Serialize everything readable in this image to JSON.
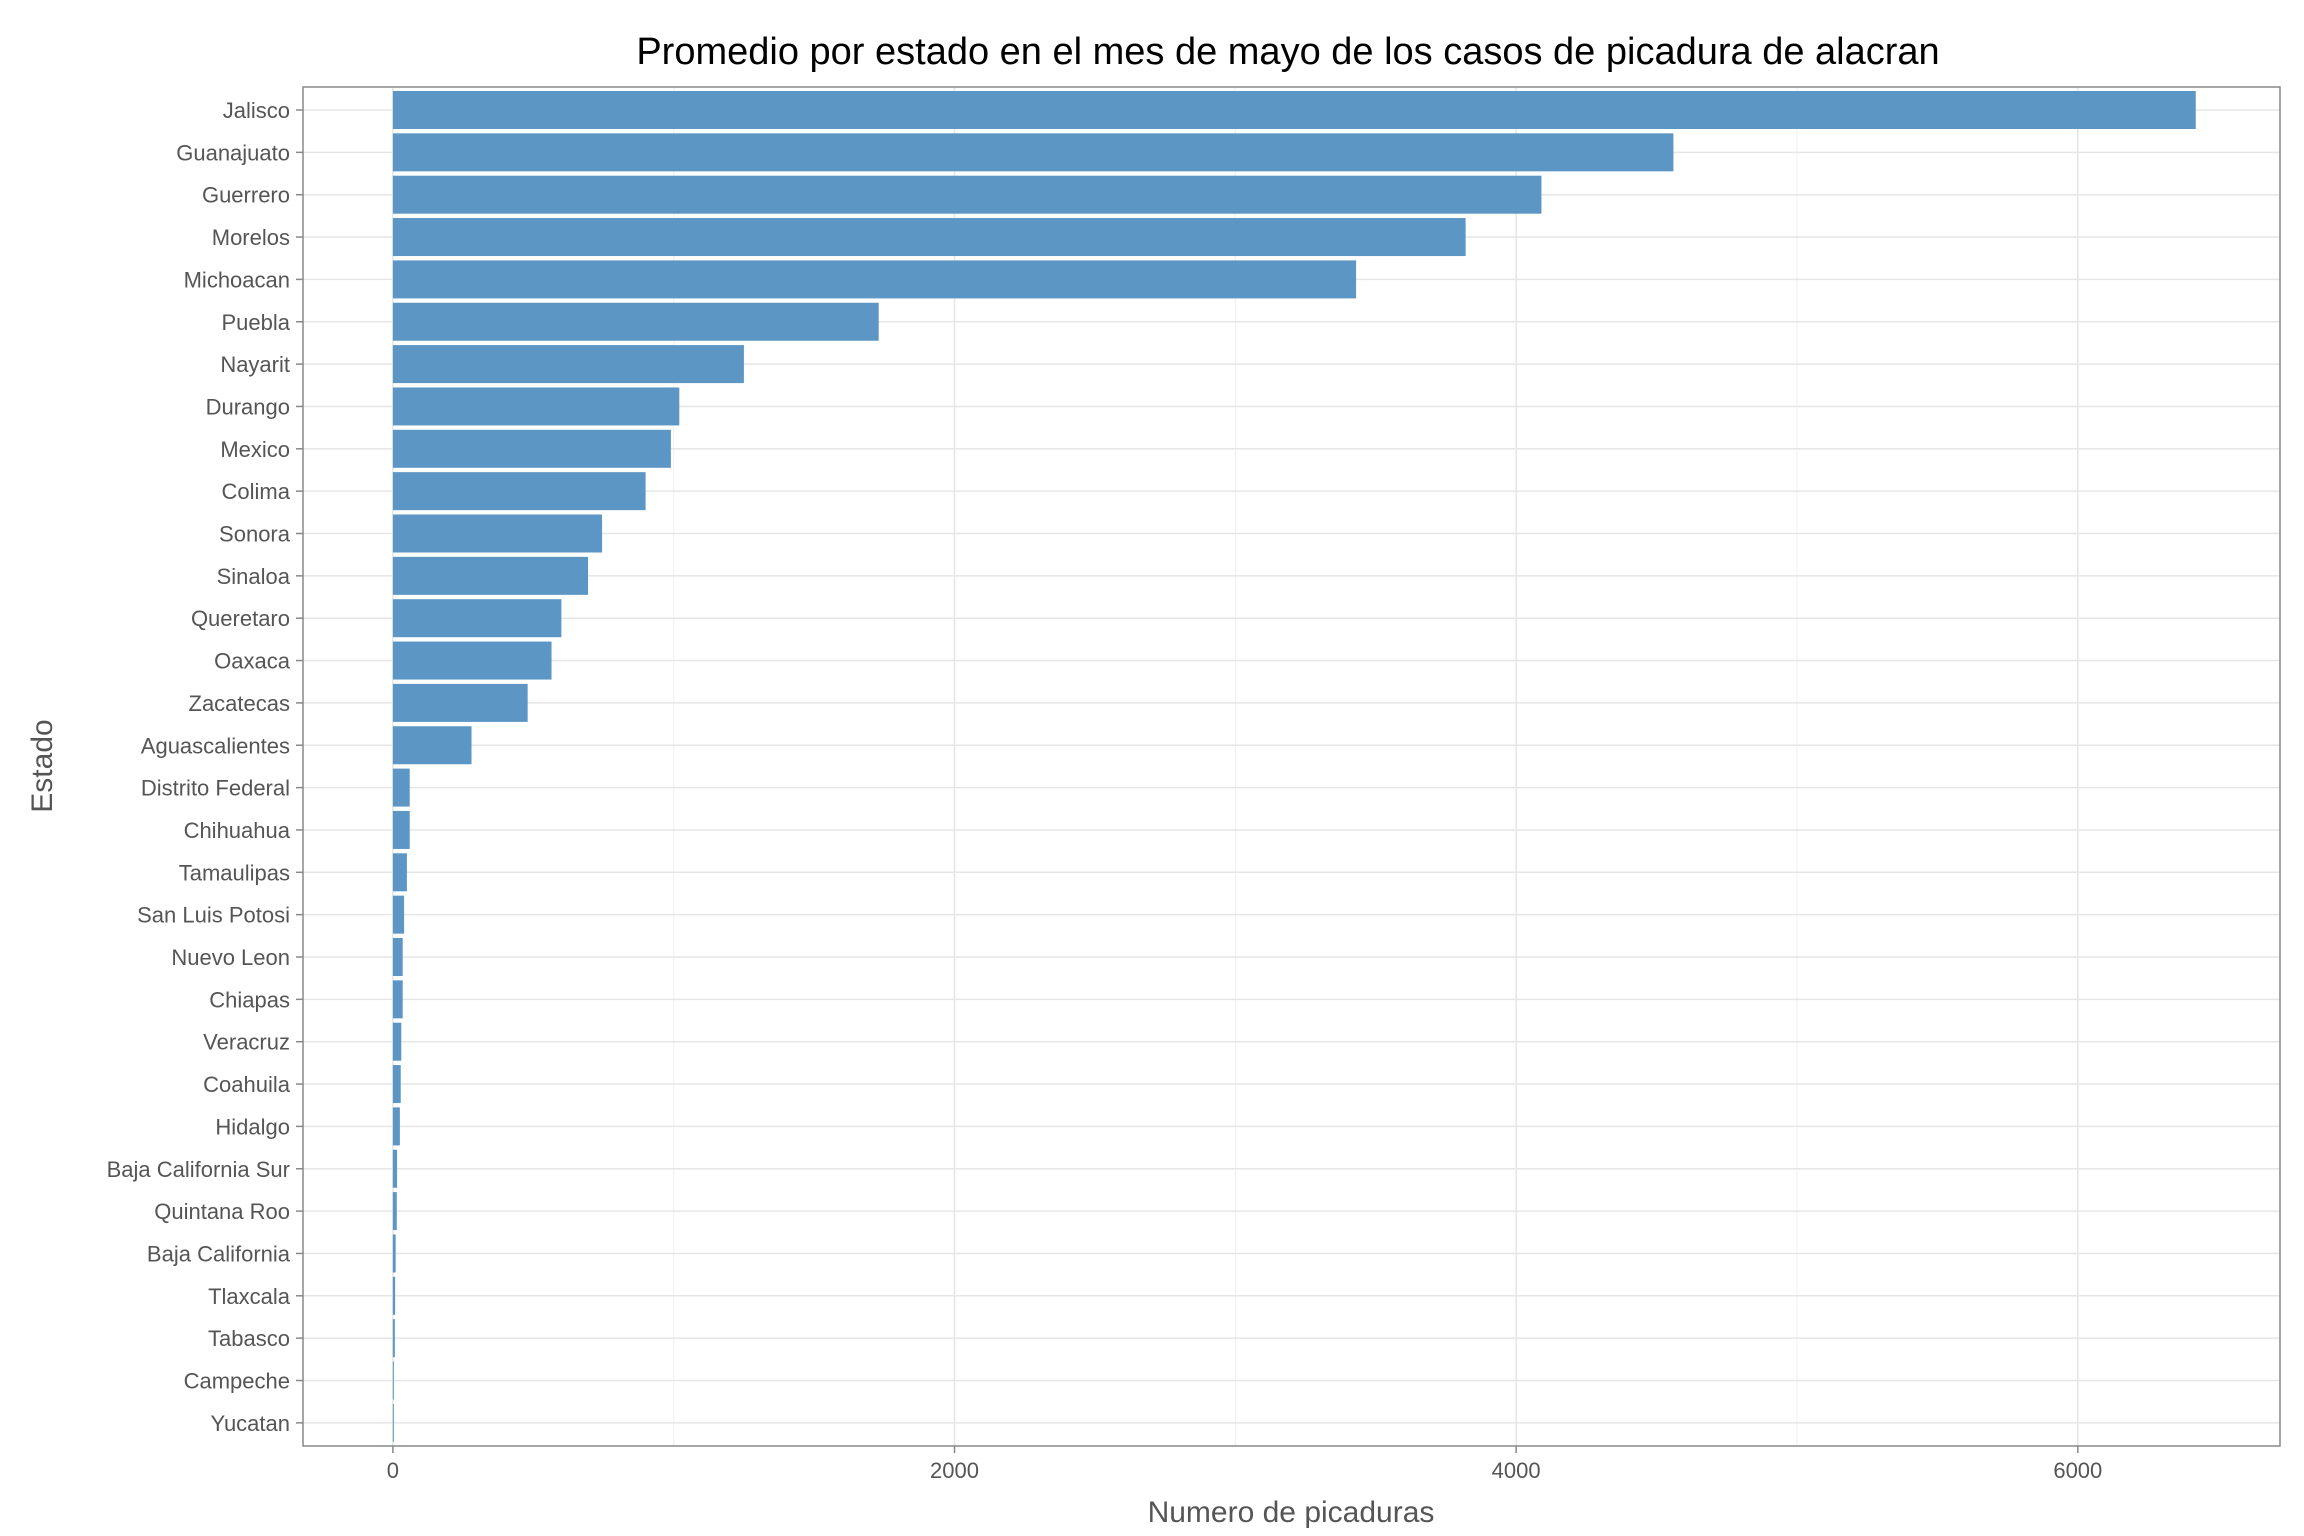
{
  "chart_data": {
    "type": "bar",
    "orientation": "horizontal",
    "title": "Promedio por estado en el mes de mayo de los casos de picadura de alacran",
    "xlabel": "Numero de picaduras",
    "ylabel": "Estado",
    "xlim": [
      -320,
      6720
    ],
    "xticks": [
      0,
      2000,
      4000,
      6000
    ],
    "grid": true,
    "bar_color": "#5b96c4",
    "categories": [
      "Jalisco",
      "Guanajuato",
      "Guerrero",
      "Morelos",
      "Michoacan",
      "Puebla",
      "Nayarit",
      "Durango",
      "Mexico",
      "Colima",
      "Sonora",
      "Sinaloa",
      "Queretaro",
      "Oaxaca",
      "Zacatecas",
      "Aguascalientes",
      "Distrito Federal",
      "Chihuahua",
      "Tamaulipas",
      "San Luis Potosi",
      "Nuevo Leon",
      "Chiapas",
      "Veracruz",
      "Coahuila",
      "Hidalgo",
      "Baja California Sur",
      "Quintana Roo",
      "Baja California",
      "Tlaxcala",
      "Tabasco",
      "Campeche",
      "Yucatan"
    ],
    "values": [
      6420,
      4560,
      4090,
      3820,
      3430,
      1730,
      1250,
      1020,
      990,
      900,
      745,
      695,
      600,
      565,
      480,
      280,
      60,
      60,
      50,
      40,
      35,
      35,
      30,
      28,
      25,
      15,
      14,
      10,
      8,
      7,
      3,
      2
    ]
  }
}
